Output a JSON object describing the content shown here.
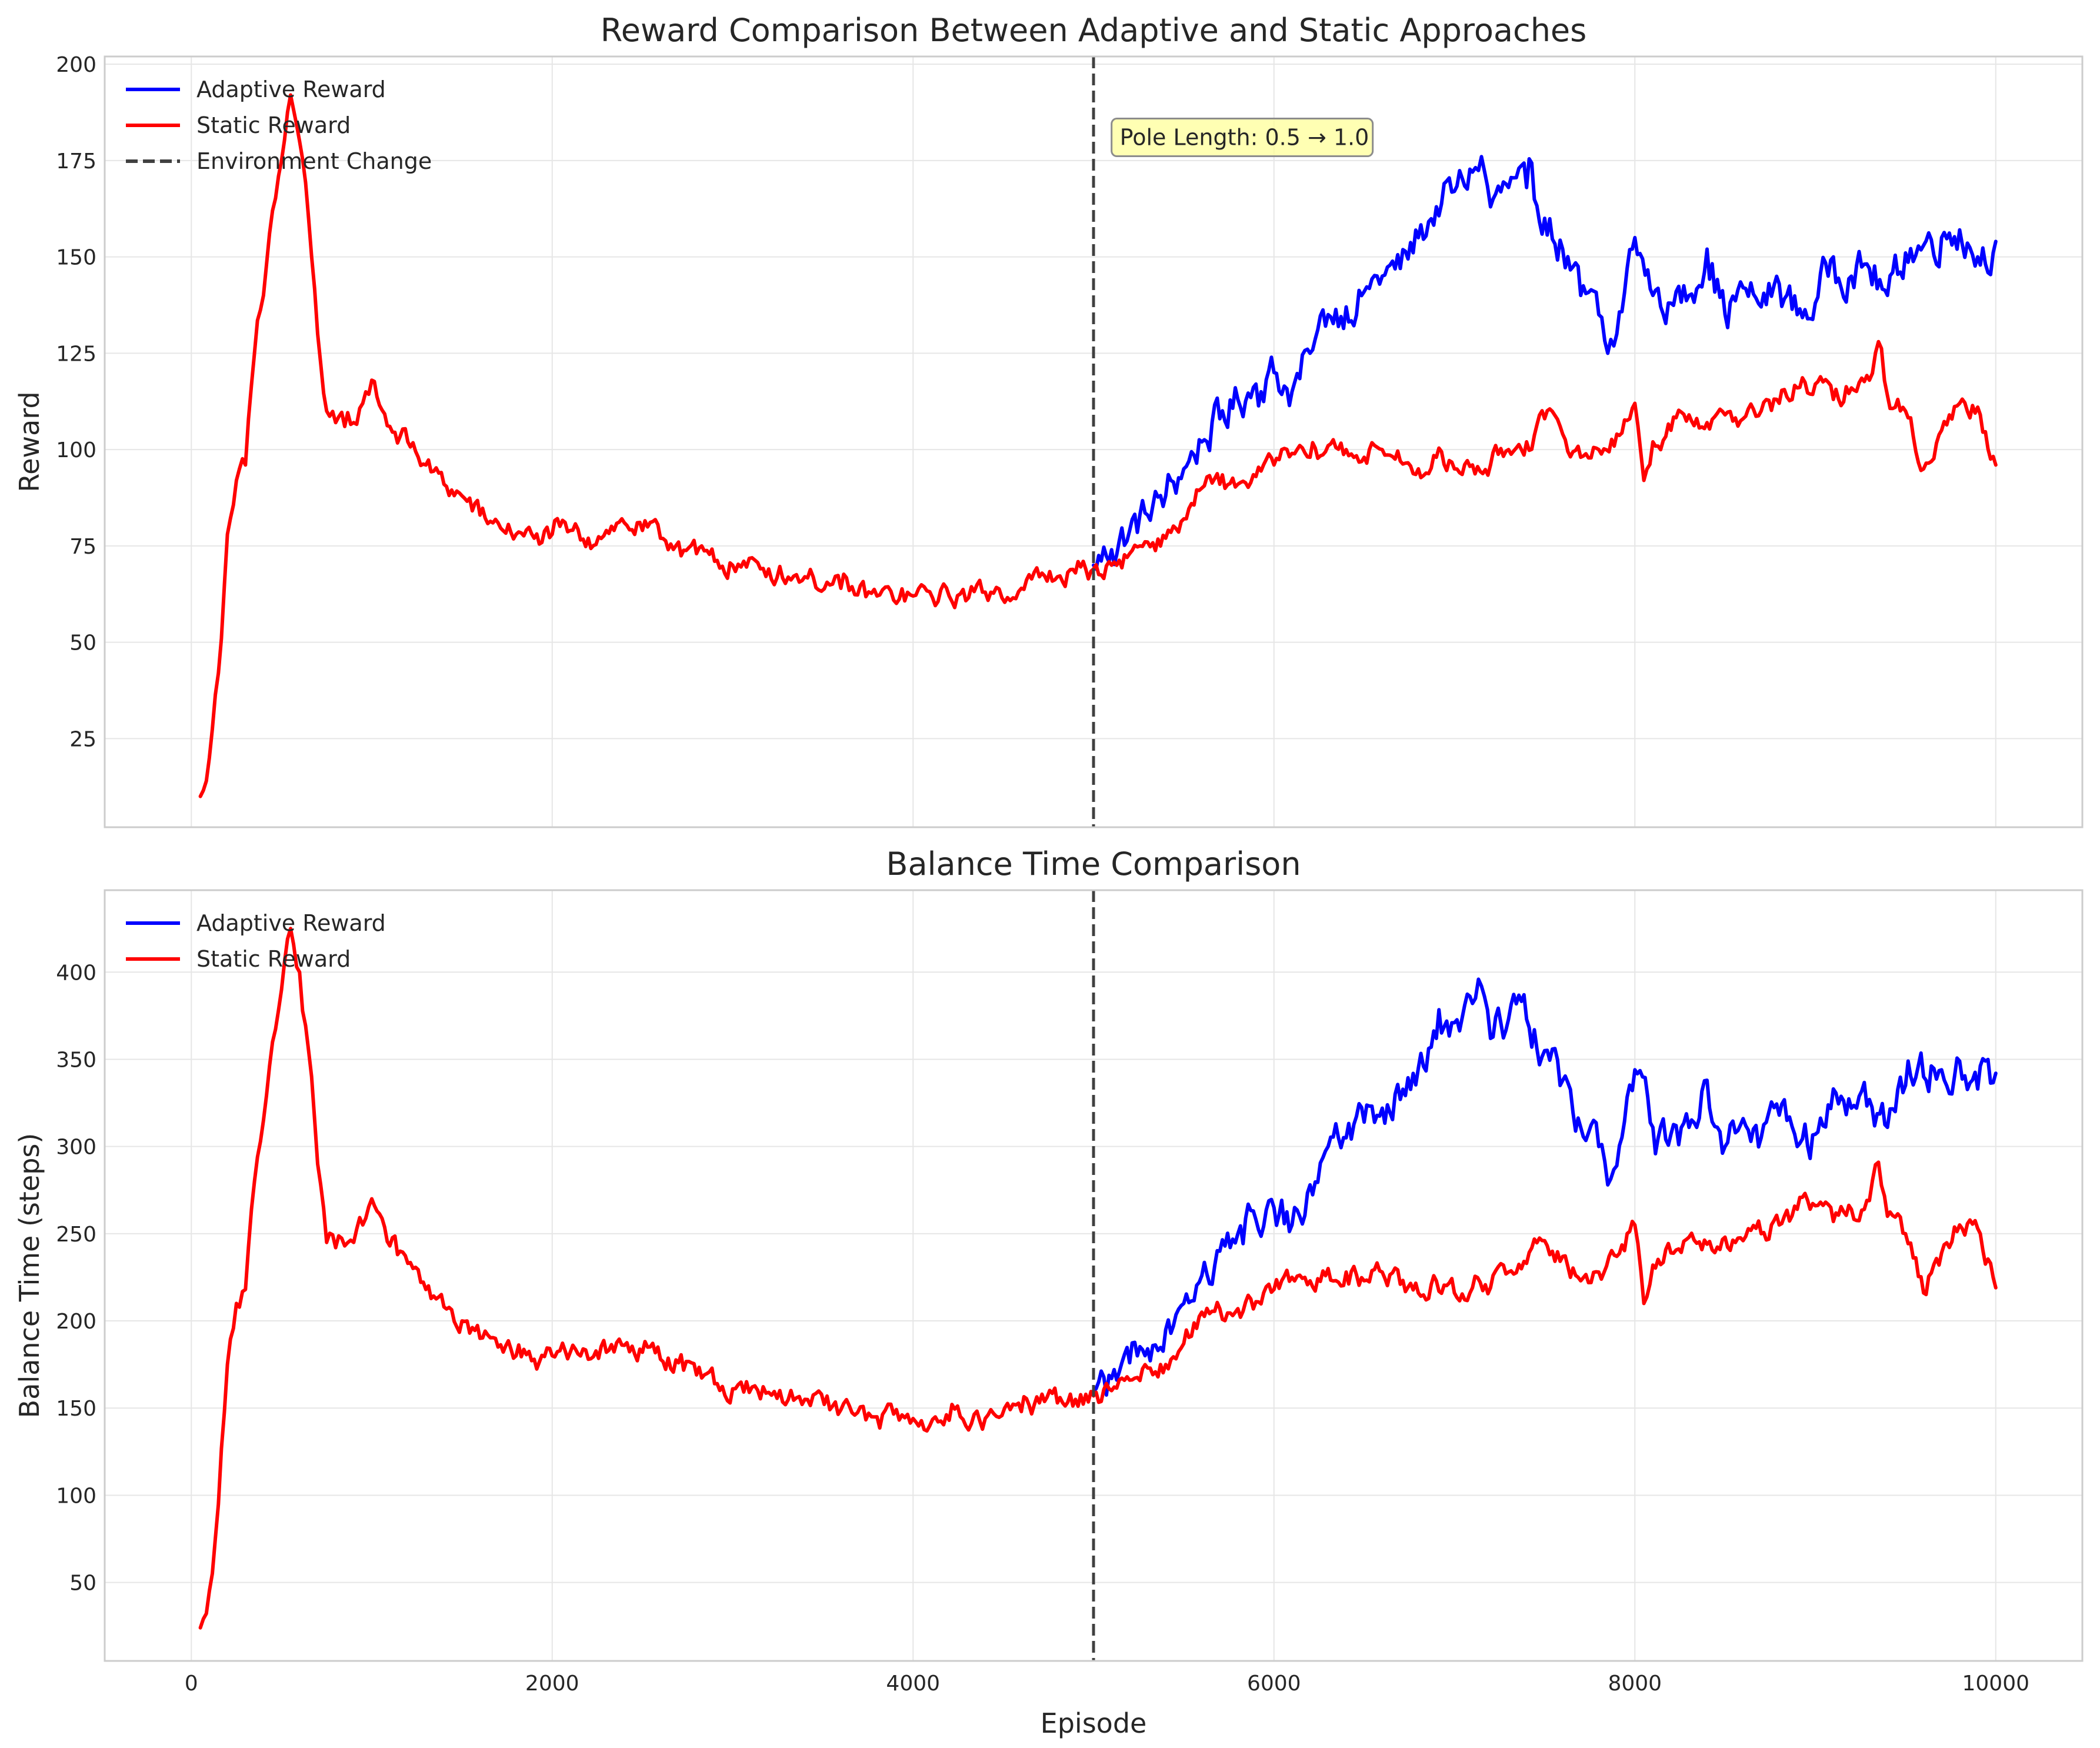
{
  "chart_data": [
    {
      "type": "line",
      "title": "Reward Comparison Between Adaptive and Static Approaches",
      "xlabel": "",
      "ylabel": "Reward",
      "xlim": [
        -480,
        10480
      ],
      "ylim": [
        2,
        202
      ],
      "xticks": [
        0,
        2000,
        4000,
        6000,
        8000,
        10000
      ],
      "yticks": [
        25,
        50,
        75,
        100,
        125,
        150,
        175,
        200
      ],
      "grid": true,
      "legend_position": "upper-left",
      "vline": {
        "x": 5000,
        "label": "Environment Change"
      },
      "annotation": {
        "text": "Pole Length: 0.5 → 1.0",
        "x": 5100,
        "y": 181
      },
      "series": [
        {
          "name": "Adaptive Reward",
          "color": "#0000ff",
          "x": [
            5000,
            5100,
            5200,
            5300,
            5400,
            5500,
            5600,
            5700,
            5800,
            5900,
            6000,
            6100,
            6200,
            6300,
            6400,
            6500,
            6600,
            6700,
            6800,
            6900,
            7000,
            7100,
            7150,
            7200,
            7300,
            7400,
            7500,
            7600,
            7700,
            7800,
            7850,
            7900,
            8000,
            8100,
            8200,
            8300,
            8400,
            8500,
            8600,
            8700,
            8800,
            8900,
            9000,
            9100,
            9200,
            9300,
            9400,
            9500,
            9600,
            9700,
            9800,
            9900,
            10000
          ],
          "y": [
            70,
            74,
            79,
            83,
            88,
            95,
            102,
            108,
            113,
            117,
            120,
            115,
            125,
            135,
            137,
            141,
            145,
            147,
            155,
            163,
            167,
            172,
            176,
            163,
            168,
            168,
            160,
            152,
            140,
            135,
            125,
            130,
            155,
            140,
            138,
            140,
            152,
            135,
            142,
            137,
            143,
            135,
            138,
            150,
            145,
            147,
            140,
            151,
            153,
            155,
            157,
            150,
            154
          ]
        },
        {
          "name": "Static Reward",
          "color": "#ff0000",
          "x": [
            50,
            100,
            150,
            200,
            250,
            300,
            350,
            400,
            450,
            500,
            550,
            600,
            650,
            700,
            750,
            800,
            850,
            900,
            950,
            1000,
            1100,
            1200,
            1300,
            1400,
            1500,
            1600,
            1700,
            1800,
            1900,
            2000,
            2100,
            2200,
            2300,
            2400,
            2500,
            2600,
            2700,
            2800,
            2900,
            3000,
            3200,
            3400,
            3600,
            3800,
            4000,
            4200,
            4400,
            4600,
            4700,
            4800,
            4900,
            5000,
            5100,
            5200,
            5300,
            5400,
            5500,
            5600,
            5700,
            5800,
            5900,
            6000,
            6100,
            6200,
            6300,
            6400,
            6500,
            6600,
            6700,
            6800,
            6900,
            7000,
            7100,
            7200,
            7300,
            7400,
            7500,
            7600,
            7700,
            7800,
            7900,
            8000,
            8050,
            8100,
            8200,
            8300,
            8400,
            8500,
            8600,
            8700,
            8800,
            8900,
            9000,
            9100,
            9200,
            9300,
            9350,
            9400,
            9500,
            9600,
            9700,
            9800,
            9900,
            10000
          ],
          "y": [
            10,
            20,
            42,
            78,
            92,
            96,
            125,
            140,
            162,
            175,
            192,
            180,
            160,
            130,
            110,
            107,
            106,
            107,
            112,
            118,
            106,
            102,
            96,
            91,
            88,
            83,
            81,
            78,
            77,
            78,
            79,
            77,
            79,
            81,
            79,
            77,
            76,
            73,
            71,
            70,
            69,
            67,
            64,
            62,
            62,
            62,
            63,
            64,
            67,
            67,
            68,
            69,
            70,
            73,
            76,
            77,
            82,
            90,
            91,
            91,
            93,
            96,
            99,
            98,
            101,
            100,
            98,
            100,
            97,
            95,
            98,
            95,
            96,
            96,
            100,
            102,
            108,
            104,
            98,
            100,
            104,
            112,
            92,
            102,
            105,
            109,
            107,
            109,
            108,
            110,
            112,
            116,
            117,
            113,
            116,
            118,
            128,
            114,
            110,
            95,
            105,
            112,
            111,
            96
          ]
        }
      ]
    },
    {
      "type": "line",
      "title": "Balance Time Comparison",
      "xlabel": "Episode",
      "ylabel": "Balance Time (steps)",
      "xlim": [
        -480,
        10480
      ],
      "ylim": [
        5,
        447
      ],
      "xticks": [
        0,
        2000,
        4000,
        6000,
        8000,
        10000
      ],
      "yticks": [
        50,
        100,
        150,
        200,
        250,
        300,
        350,
        400
      ],
      "grid": true,
      "legend_position": "upper-left",
      "vline": {
        "x": 5000
      },
      "series": [
        {
          "name": "Adaptive Reward",
          "color": "#0000ff",
          "x": [
            5000,
            5100,
            5200,
            5300,
            5400,
            5500,
            5600,
            5700,
            5800,
            5900,
            6000,
            6100,
            6200,
            6300,
            6400,
            6500,
            6600,
            6700,
            6800,
            6900,
            7000,
            7100,
            7150,
            7200,
            7300,
            7400,
            7500,
            7600,
            7700,
            7800,
            7850,
            7900,
            8000,
            8100,
            8200,
            8300,
            8400,
            8500,
            8600,
            8700,
            8800,
            8900,
            9000,
            9100,
            9200,
            9300,
            9400,
            9500,
            9600,
            9700,
            9800,
            9900,
            10000
          ],
          "y": [
            160,
            167,
            176,
            184,
            195,
            210,
            226,
            240,
            250,
            258,
            265,
            255,
            278,
            300,
            305,
            314,
            322,
            327,
            345,
            362,
            371,
            382,
            392,
            362,
            373,
            373,
            355,
            338,
            311,
            300,
            278,
            289,
            344,
            311,
            307,
            311,
            338,
            300,
            316,
            305,
            318,
            300,
            307,
            333,
            322,
            327,
            311,
            335,
            340,
            344,
            349,
            333,
            342
          ]
        },
        {
          "name": "Static Reward",
          "color": "#ff0000",
          "x": [
            50,
            100,
            150,
            200,
            250,
            300,
            350,
            400,
            450,
            500,
            550,
            600,
            650,
            700,
            750,
            800,
            850,
            900,
            950,
            1000,
            1100,
            1200,
            1300,
            1400,
            1500,
            1600,
            1700,
            1800,
            1900,
            2000,
            2100,
            2200,
            2300,
            2400,
            2500,
            2600,
            2700,
            2800,
            2900,
            3000,
            3200,
            3400,
            3600,
            3800,
            4000,
            4200,
            4400,
            4600,
            4700,
            4800,
            4900,
            5000,
            5100,
            5200,
            5300,
            5400,
            5500,
            5600,
            5700,
            5800,
            5900,
            6000,
            6100,
            6200,
            6300,
            6400,
            6500,
            6600,
            6700,
            6800,
            6900,
            7000,
            7100,
            7200,
            7300,
            7400,
            7500,
            7600,
            7700,
            7800,
            7900,
            8000,
            8050,
            8100,
            8200,
            8300,
            8400,
            8500,
            8600,
            8700,
            8800,
            8900,
            9000,
            9100,
            9200,
            9300,
            9350,
            9400,
            9500,
            9600,
            9700,
            9800,
            9900,
            10000
          ],
          "y": [
            24,
            45,
            95,
            175,
            210,
            218,
            280,
            315,
            360,
            390,
            425,
            400,
            355,
            290,
            245,
            242,
            243,
            245,
            255,
            270,
            243,
            233,
            218,
            208,
            200,
            190,
            185,
            180,
            178,
            180,
            182,
            178,
            182,
            186,
            182,
            178,
            176,
            169,
            164,
            161,
            159,
            155,
            149,
            145,
            144,
            143,
            144,
            148,
            153,
            153,
            155,
            157,
            160,
            166,
            173,
            175,
            187,
            205,
            207,
            207,
            211,
            218,
            225,
            223,
            230,
            228,
            223,
            228,
            221,
            216,
            223,
            216,
            219,
            219,
            228,
            233,
            246,
            237,
            223,
            228,
            237,
            255,
            210,
            232,
            239,
            248,
            244,
            248,
            246,
            250,
            255,
            264,
            266,
            257,
            264,
            269,
            291,
            260,
            250,
            216,
            239,
            255,
            253,
            219
          ]
        }
      ]
    }
  ]
}
